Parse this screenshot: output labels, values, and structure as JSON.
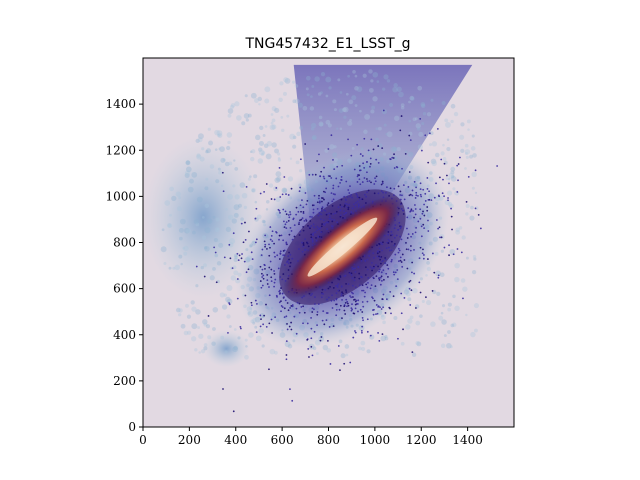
{
  "chart_data": {
    "type": "heatmap",
    "title": "TNG457432_E1_LSST_g",
    "xlabel": "",
    "ylabel": "",
    "xlim": [
      0,
      1600
    ],
    "ylim": [
      0,
      1600
    ],
    "x_ticks": [
      "0",
      "200",
      "400",
      "600",
      "800",
      "1000",
      "1200",
      "1400"
    ],
    "y_ticks": [
      "0",
      "200",
      "400",
      "600",
      "800",
      "1000",
      "1200",
      "1400"
    ],
    "grid": false,
    "colormap": "twilight_shifted",
    "background_color": "#e2d9e2",
    "galaxy": {
      "center": [
        860,
        780
      ],
      "major_axis_angle_deg": -40,
      "core_half_length": 260,
      "core_half_width": 60,
      "halo_half_length": 520,
      "halo_half_width": 360
    },
    "diffuse_regions": [
      {
        "label": "upper-fan",
        "x": [
          650,
          1420
        ],
        "y": [
          1000,
          1570
        ],
        "color": "#4e5aac"
      },
      {
        "label": "left-plume",
        "x": [
          0,
          520
        ],
        "y": [
          560,
          1260
        ],
        "color": "#8fb4cf"
      },
      {
        "label": "lower-left-patch",
        "x": [
          260,
          460
        ],
        "y": [
          260,
          420
        ],
        "color": "#9dc0d6"
      }
    ]
  }
}
